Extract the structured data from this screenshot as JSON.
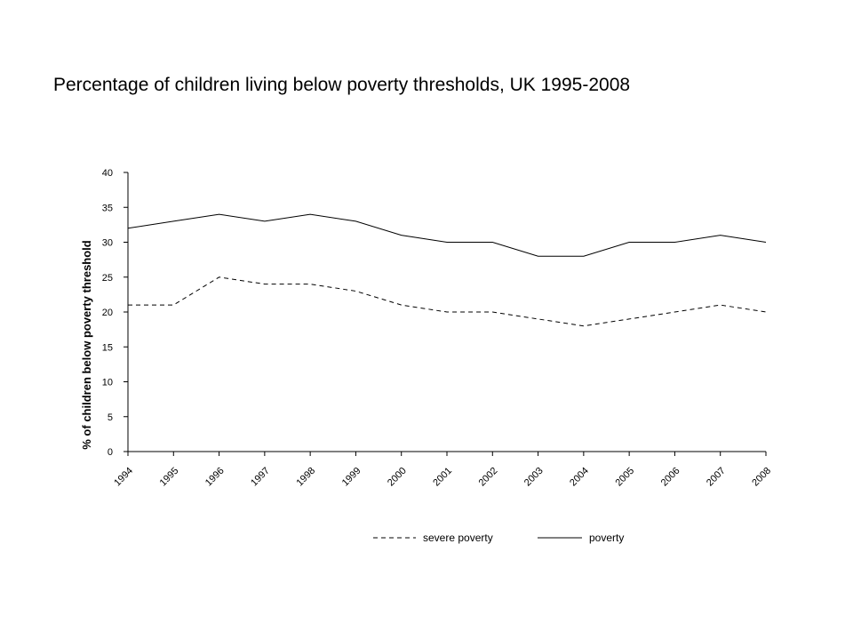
{
  "slide": {
    "title": "Percentage of children living below poverty thresholds, UK 1995-2008"
  },
  "chart_data": {
    "type": "line",
    "title": "Percentage of children living below poverty thresholds, UK 1995-2008",
    "xlabel": "",
    "ylabel": "% of children below poverty threshold",
    "categories": [
      "1994",
      "1995",
      "1996",
      "1997",
      "1998",
      "1999",
      "2000",
      "2001",
      "2002",
      "2003",
      "2004",
      "2005",
      "2006",
      "2007",
      "2008"
    ],
    "y_ticks": [
      "0",
      "5",
      "10",
      "15",
      "20",
      "25",
      "30",
      "35",
      "40"
    ],
    "ylim": [
      0,
      40
    ],
    "grid": false,
    "legend_position": "bottom",
    "series": [
      {
        "name": "severe poverty",
        "style": "dashed",
        "color": "#000000",
        "values": [
          21,
          21,
          25,
          24,
          24,
          23,
          21,
          20,
          20,
          19,
          18,
          19,
          20,
          21,
          20
        ]
      },
      {
        "name": "poverty",
        "style": "solid",
        "color": "#000000",
        "values": [
          32,
          33,
          34,
          33,
          34,
          33,
          31,
          30,
          30,
          28,
          28,
          30,
          30,
          31,
          30
        ]
      }
    ]
  }
}
